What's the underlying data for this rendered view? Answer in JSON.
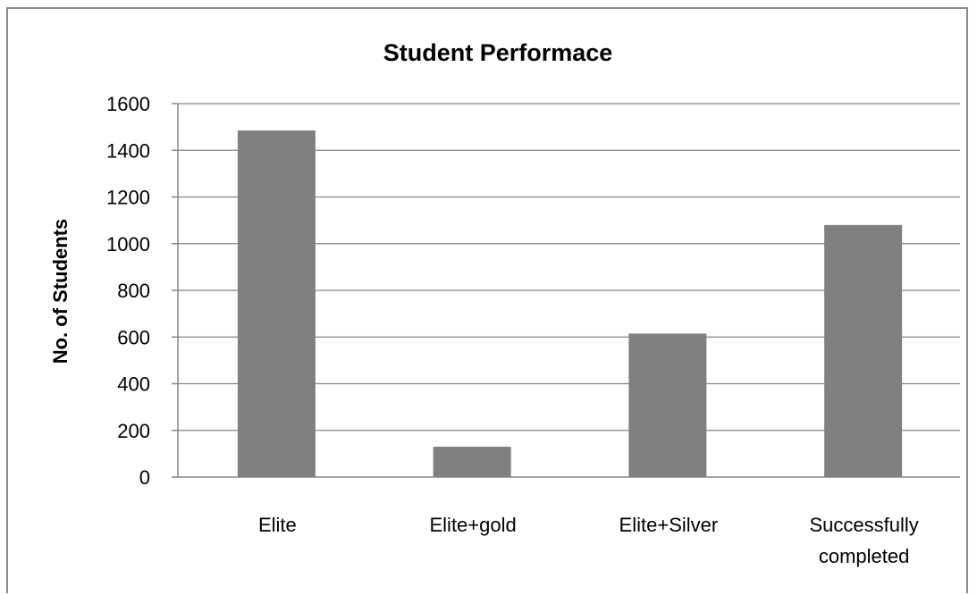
{
  "chart_data": {
    "type": "bar",
    "title": "Student Performace",
    "xlabel": "",
    "ylabel": "No. of Students",
    "categories": [
      [
        "Elite"
      ],
      [
        "Elite+gold"
      ],
      [
        "Elite+Silver"
      ],
      [
        "Successfully",
        "completed"
      ]
    ],
    "values": [
      1485,
      130,
      615,
      1080
    ],
    "ylim": [
      0,
      1600
    ],
    "yticks": [
      "0",
      "200",
      "400",
      "600",
      "800",
      "1000",
      "1200",
      "1400",
      "1600"
    ],
    "grid": true,
    "legend": "none",
    "colors": {
      "bar": "#808080",
      "grid": "#868686",
      "axis": "#868686"
    }
  }
}
